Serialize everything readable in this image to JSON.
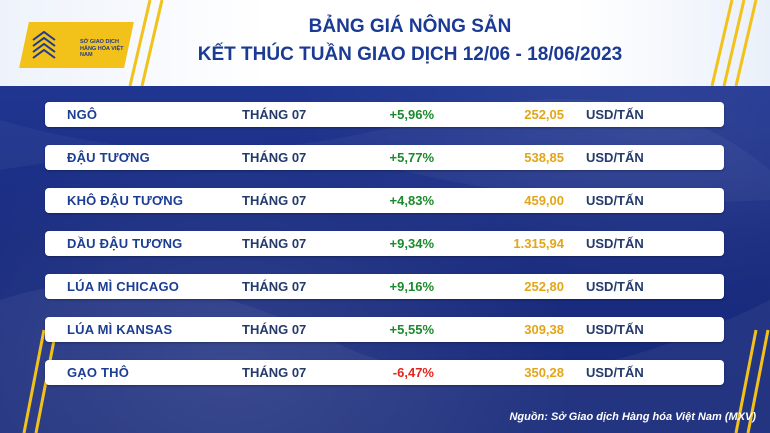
{
  "logo": {
    "text": "SỞ GIAO DỊCH HÀNG HÓA VIỆT NAM"
  },
  "title": {
    "line1": "BẢNG GIÁ NÔNG SẢN",
    "line2": "KẾT THÚC TUẦN GIAO DỊCH 12/06 - 18/06/2023"
  },
  "rows": [
    {
      "name": "NGÔ",
      "month": "THÁNG 07",
      "change": "+5,96%",
      "price": "252,05",
      "unit": "USD/TẤN"
    },
    {
      "name": "ĐẬU TƯƠNG",
      "month": "THÁNG 07",
      "change": "+5,77%",
      "price": "538,85",
      "unit": "USD/TẤN"
    },
    {
      "name": "KHÔ ĐẬU TƯƠNG",
      "month": "THÁNG 07",
      "change": "+4,83%",
      "price": "459,00",
      "unit": "USD/TẤN"
    },
    {
      "name": "DẦU ĐẬU TƯƠNG",
      "month": "THÁNG 07",
      "change": "+9,34%",
      "price": "1.315,94",
      "unit": "USD/TẤN"
    },
    {
      "name": "LÚA MÌ CHICAGO",
      "month": "THÁNG 07",
      "change": "+9,16%",
      "price": "252,80",
      "unit": "USD/TẤN"
    },
    {
      "name": "LÚA MÌ KANSAS",
      "month": "THÁNG 07",
      "change": "+5,55%",
      "price": "309,38",
      "unit": "USD/TẤN"
    },
    {
      "name": "GẠO THÔ",
      "month": "THÁNG 07",
      "change": "-6,47%",
      "price": "350,28",
      "unit": "USD/TẤN"
    }
  ],
  "source": "Nguồn: Sở Giao dịch Hàng hóa Việt Nam (MXV)",
  "colors": {
    "background": "#1c2f86",
    "title": "#1b3a94",
    "up": "#1a8a2c",
    "down": "#e0261d",
    "price": "#e2a617",
    "accent": "#f2c21b"
  }
}
